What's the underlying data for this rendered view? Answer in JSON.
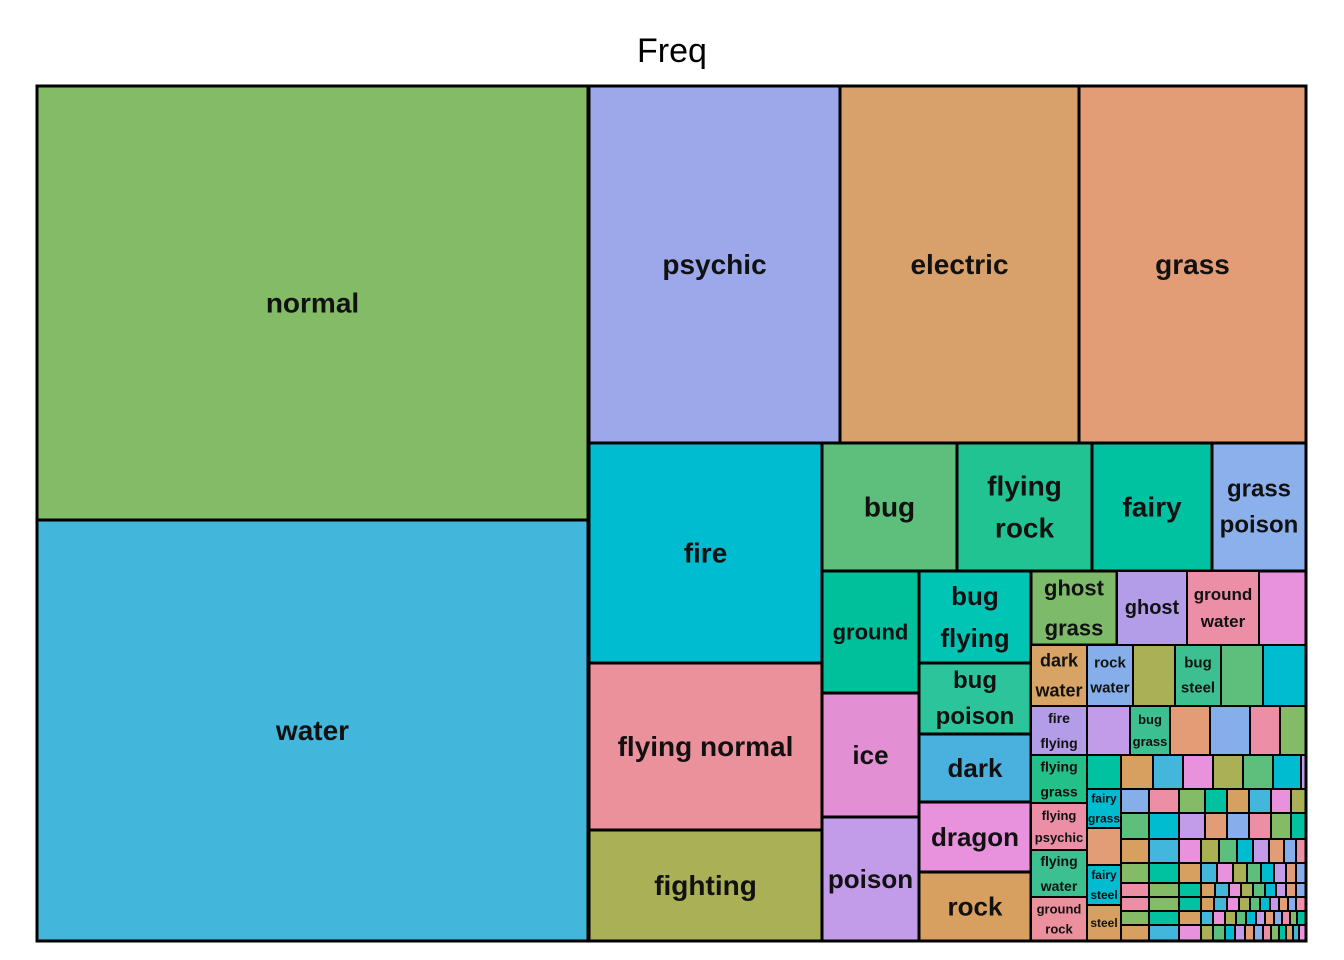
{
  "chart_data": {
    "type": "treemap",
    "title": "Freq",
    "tiles": [
      {
        "label": "normal",
        "value": 171,
        "color": "#84BB66"
      },
      {
        "label": "water",
        "value": 171,
        "color": "#42B7DB"
      },
      {
        "label": "psychic",
        "value": 83,
        "color": "#9CA8EA"
      },
      {
        "label": "electric",
        "value": 79,
        "color": "#D8A06A"
      },
      {
        "label": "grass",
        "value": 75,
        "color": "#E29C76"
      },
      {
        "label": "fire",
        "value": 45,
        "color": "#00BCD0"
      },
      {
        "label": "flying normal",
        "value": 35,
        "color": "#EB919C"
      },
      {
        "label": "fighting",
        "value": 24,
        "color": "#AAB056"
      },
      {
        "label": "bug",
        "value": 15,
        "color": "#5EBF7C"
      },
      {
        "label": "flying rock",
        "value": 15,
        "color": "#22C392"
      },
      {
        "label": "fairy",
        "value": 13,
        "color": "#00C1A0"
      },
      {
        "label": "grass poison",
        "value": 13,
        "color": "#8CB0EB"
      },
      {
        "label": "ground",
        "value": 13,
        "color": "#00C09C"
      },
      {
        "label": "bug flying",
        "value": 12,
        "color": "#00C4B4"
      },
      {
        "label": "bug poison",
        "value": 9,
        "color": "#2CC49A"
      },
      {
        "label": "ice",
        "value": 11,
        "color": "#E38FD4"
      },
      {
        "label": "dark",
        "value": 8,
        "color": "#4AB1DE"
      },
      {
        "label": "dragon",
        "value": 7,
        "color": "#E891DD"
      },
      {
        "label": "poison",
        "value": 12,
        "color": "#C29CE8"
      },
      {
        "label": "rock",
        "value": 7,
        "color": "#D8A060"
      },
      {
        "label": "ghost grass",
        "value": 5,
        "color": "#7DBB6B"
      },
      {
        "label": "ghost",
        "value": 4,
        "color": "#B39CE8"
      },
      {
        "label": "ground water",
        "value": 4,
        "color": "#EC8EA6"
      },
      {
        "label": "dark water",
        "value": 3,
        "color": "#D7A465"
      },
      {
        "label": "rock water",
        "value": 2,
        "color": "#86AEEA"
      },
      {
        "label": "bug steel",
        "value": 2,
        "color": "#3DC091"
      },
      {
        "label": "fire flying",
        "value": 2,
        "color": "#B39CE8"
      },
      {
        "label": "bug grass",
        "value": 2,
        "color": "#3DC091"
      },
      {
        "label": "flying grass",
        "value": 2,
        "color": "#24C08A"
      },
      {
        "label": "flying psychic",
        "value": 2,
        "color": "#EC8EA6"
      },
      {
        "label": "flying water",
        "value": 2,
        "color": "#3DC091"
      },
      {
        "label": "ground rock",
        "value": 2,
        "color": "#EB909C"
      },
      {
        "label": "fairy grass",
        "value": 1,
        "color": "#00BCD0"
      },
      {
        "label": "fairy steel",
        "value": 1,
        "color": "#00BCD0"
      },
      {
        "label": "steel",
        "value": 1,
        "color": "#D8A060"
      }
    ]
  }
}
